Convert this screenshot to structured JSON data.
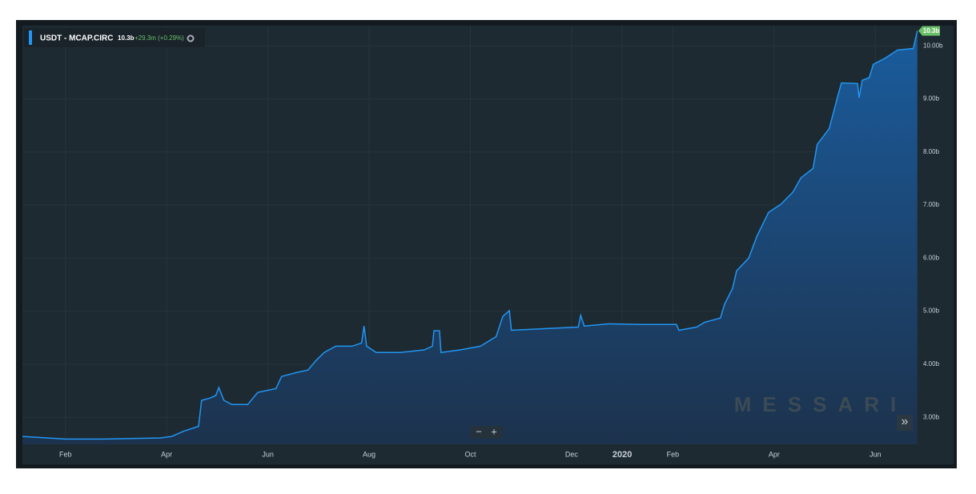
{
  "header": {
    "title": "USDT - MCAP.CIRC",
    "value": "10.3b",
    "change": "+29.3m (+0.29%)"
  },
  "watermark": "MESSARI",
  "controls": {
    "zoom_out": "−",
    "zoom_in": "+",
    "expand": "»"
  },
  "chart_data": {
    "type": "line",
    "x": [
      1.15,
      2.0,
      2.76,
      3.87,
      4.1,
      4.34,
      4.63,
      4.69,
      4.85,
      4.97,
      5.03,
      5.13,
      5.29,
      5.6,
      5.8,
      6.16,
      6.27,
      6.55,
      6.79,
      6.95,
      7.11,
      7.34,
      7.66,
      7.85,
      7.9,
      7.95,
      8.14,
      8.61,
      9.09,
      9.25,
      9.28,
      9.39,
      9.42,
      9.8,
      10.2,
      10.51,
      10.64,
      10.77,
      10.81,
      11.46,
      12.13,
      12.18,
      12.25,
      12.73,
      13.36,
      14.07,
      14.12,
      14.47,
      14.63,
      14.94,
      15.02,
      15.18,
      15.26,
      15.5,
      15.66,
      15.89,
      16.13,
      16.37,
      16.53,
      16.77,
      16.85,
      17.09,
      17.25,
      17.33,
      17.65,
      17.68,
      17.74,
      17.88,
      17.96,
      18.2,
      18.44,
      18.75,
      18.83
    ],
    "series": [
      {
        "name": "USDT - MCAP.CIRC",
        "color": "#2196f3",
        "values": [
          2.64,
          2.59,
          2.59,
          2.61,
          2.64,
          2.74,
          2.83,
          3.32,
          3.36,
          3.41,
          3.56,
          3.32,
          3.24,
          3.24,
          3.47,
          3.54,
          3.77,
          3.84,
          3.89,
          4.07,
          4.22,
          4.34,
          4.34,
          4.4,
          4.72,
          4.34,
          4.22,
          4.22,
          4.27,
          4.34,
          4.63,
          4.63,
          4.22,
          4.27,
          4.34,
          4.52,
          4.9,
          5.01,
          4.64,
          4.67,
          4.7,
          4.92,
          4.72,
          4.76,
          4.75,
          4.75,
          4.64,
          4.7,
          4.79,
          4.87,
          5.13,
          5.43,
          5.76,
          6.0,
          6.41,
          6.86,
          7.01,
          7.24,
          7.51,
          7.69,
          8.14,
          8.44,
          9.02,
          9.3,
          9.29,
          9.02,
          9.35,
          9.4,
          9.65,
          9.77,
          9.92,
          9.95,
          10.28
        ]
      }
    ],
    "xlim": [
      1.15,
      18.85
    ],
    "xticks": [
      {
        "value": 2,
        "label": "Feb"
      },
      {
        "value": 4,
        "label": "Apr"
      },
      {
        "value": 6,
        "label": "Jun"
      },
      {
        "value": 8,
        "label": "Aug"
      },
      {
        "value": 10,
        "label": "Oct"
      },
      {
        "value": 12,
        "label": "Dec"
      },
      {
        "value": 13,
        "label": "2020"
      },
      {
        "value": 14,
        "label": "Feb"
      },
      {
        "value": 16,
        "label": "Apr"
      },
      {
        "value": 18,
        "label": "Jun"
      }
    ],
    "ylim": [
      2.49,
      10.38
    ],
    "yticks": [
      {
        "value": 3,
        "label": "3.00b"
      },
      {
        "value": 4,
        "label": "4.00b"
      },
      {
        "value": 5,
        "label": "5.00b"
      },
      {
        "value": 6,
        "label": "6.00b"
      },
      {
        "value": 7,
        "label": "7.00b"
      },
      {
        "value": 8,
        "label": "8.00b"
      },
      {
        "value": 9,
        "label": "9.00b"
      },
      {
        "value": 10,
        "label": "10.00b"
      }
    ],
    "grid": true
  }
}
